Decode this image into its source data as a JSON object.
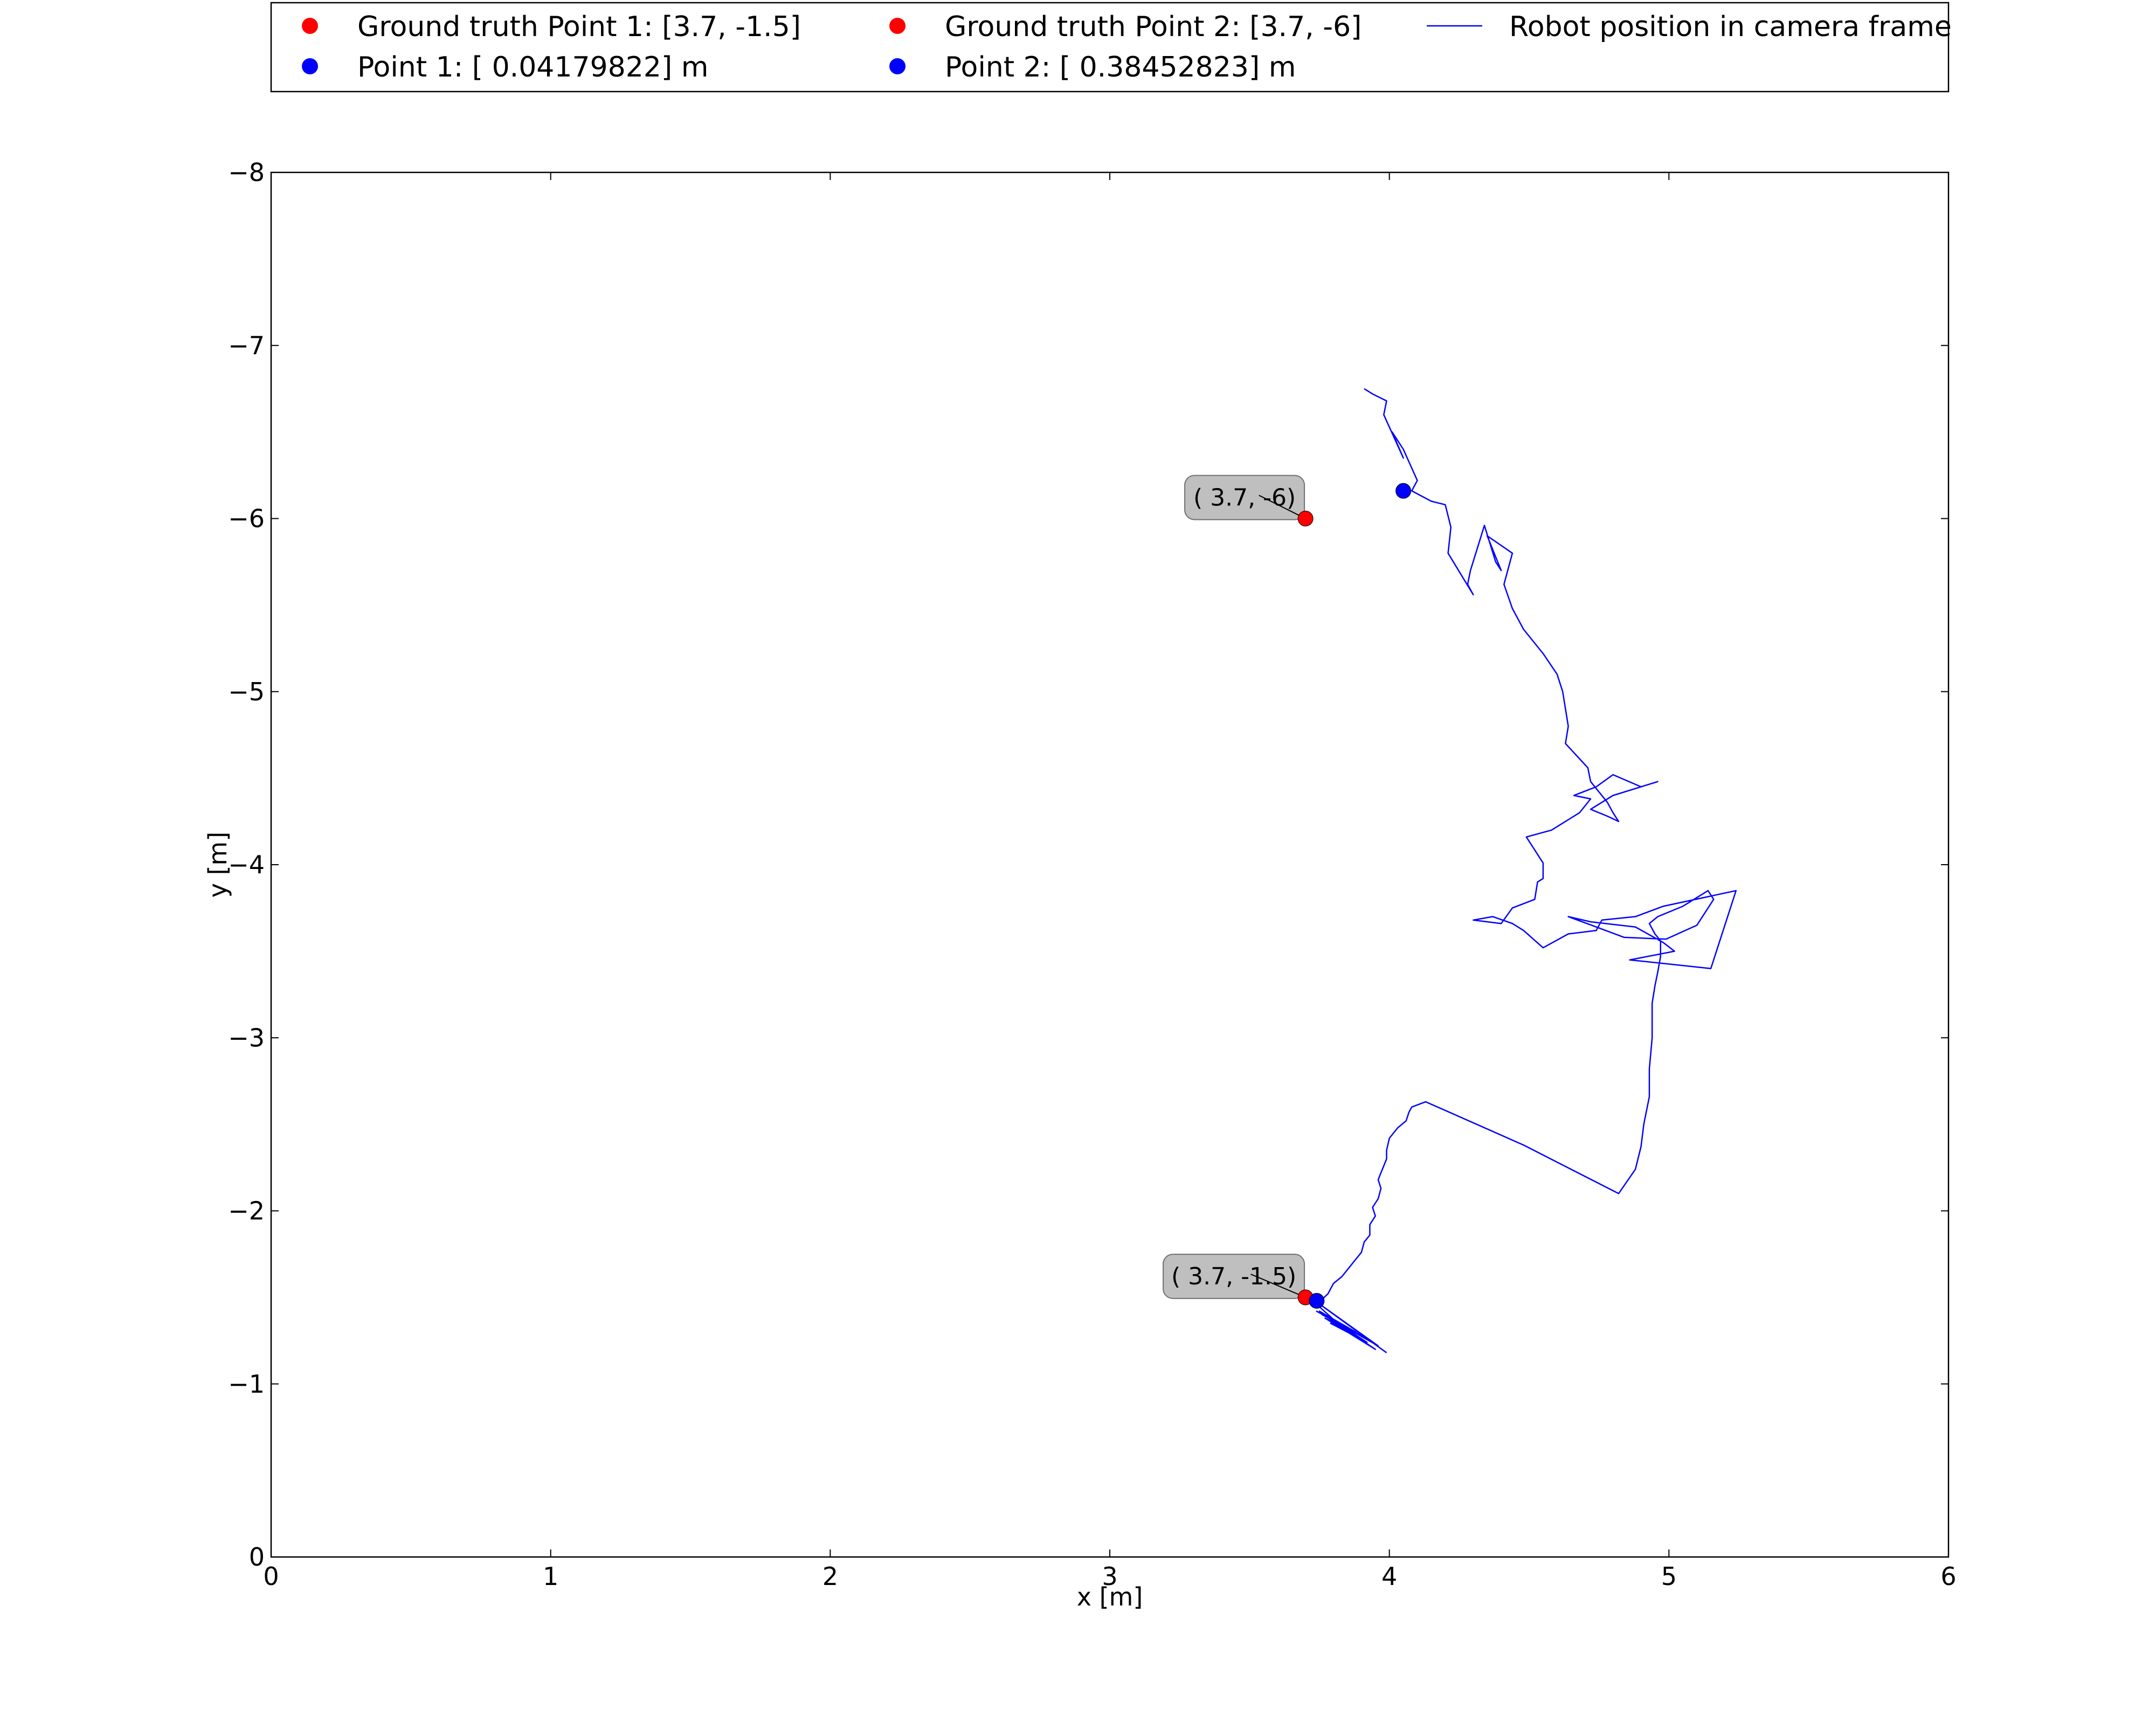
{
  "chart_data": {
    "type": "line",
    "xlabel": "x [m]",
    "ylabel": "y [m]",
    "xlim": [
      0,
      6
    ],
    "ylim": [
      0,
      -8
    ],
    "y_axis_inverted": true,
    "x_ticks": [
      "0",
      "1",
      "2",
      "3",
      "4",
      "5",
      "6"
    ],
    "y_ticks": [
      "0",
      "−1",
      "−2",
      "−3",
      "−4",
      "−5",
      "−6",
      "−7",
      "−8"
    ],
    "grid": false,
    "legend_placement": "top (above plot, 3 columns)",
    "legend": [
      {
        "label": "Ground truth Point 1: [3.7, -1.5]",
        "marker": "dot",
        "color": "#ff0000"
      },
      {
        "label": "Point 1: [ 0.04179822] m",
        "marker": "dot",
        "color": "#0000ff"
      },
      {
        "label": "Ground truth Point 2: [3.7, -6]",
        "marker": "dot",
        "color": "#ff0000"
      },
      {
        "label": "Point 2: [ 0.38452823] m",
        "marker": "dot",
        "color": "#0000ff"
      },
      {
        "label": "Robot position in camera frame",
        "marker": "line",
        "color": "#0000ff"
      }
    ],
    "points": [
      {
        "name": "ground-truth-point-1",
        "x": 3.7,
        "y": -1.5,
        "color": "#ff0000"
      },
      {
        "name": "ground-truth-point-2",
        "x": 3.7,
        "y": -6.0,
        "color": "#ff0000"
      },
      {
        "name": "estimated-point-1",
        "x": 3.74,
        "y": -1.48,
        "color": "#0000ff"
      },
      {
        "name": "estimated-point-2",
        "x": 4.05,
        "y": -6.16,
        "color": "#0000ff"
      }
    ],
    "annotations": [
      {
        "text": "( 3.7, -1.5)",
        "x": 3.7,
        "y": -1.5
      },
      {
        "text": "( 3.7, -6)",
        "x": 3.7,
        "y": -6.0
      }
    ],
    "series": [
      {
        "color": "#0000ff",
        "x": [
          3.99,
          3.76,
          3.96,
          3.74,
          3.93,
          3.76,
          3.9,
          3.77,
          3.95,
          3.8,
          3.88,
          3.75,
          3.92,
          3.79,
          3.85,
          3.74,
          3.78,
          3.8,
          3.83,
          3.85,
          3.88,
          3.9,
          3.91,
          3.93,
          3.93,
          3.95,
          3.94,
          3.96,
          3.97,
          3.96,
          3.97,
          3.98,
          3.99,
          3.99,
          4.0,
          4.03,
          4.06,
          4.07,
          4.08,
          4.13,
          4.48,
          4.82,
          4.88,
          4.9,
          4.91,
          4.93,
          4.93,
          4.94,
          4.94,
          4.95,
          4.96,
          4.97,
          4.97,
          4.95,
          4.93,
          4.96,
          5.05,
          5.14,
          5.16,
          5.1,
          4.99,
          4.84,
          4.74,
          4.64,
          4.72,
          4.88,
          4.98,
          5.02,
          4.86,
          5.15,
          5.24,
          4.98,
          4.88,
          4.76,
          4.74,
          4.64,
          4.55,
          4.48,
          4.44,
          4.37,
          4.3,
          4.4,
          4.44,
          4.52,
          4.53,
          4.55,
          4.55,
          4.49,
          4.58,
          4.64,
          4.68,
          4.72,
          4.66,
          4.74,
          4.8,
          4.9,
          4.96,
          4.8,
          4.72,
          4.78,
          4.82,
          4.8,
          4.78,
          4.72,
          4.71,
          4.63,
          4.64,
          4.62,
          4.6,
          4.55,
          4.48,
          4.44,
          4.41,
          4.44,
          4.35,
          4.4,
          4.38,
          4.34,
          4.29,
          4.28,
          4.3,
          4.21,
          4.22,
          4.2,
          4.15,
          4.08,
          4.1,
          4.05,
          4.01,
          4.05,
          3.98,
          3.99,
          3.94,
          3.92,
          3.91
        ],
        "y": [
          -1.18,
          -1.45,
          -1.22,
          -1.42,
          -1.25,
          -1.4,
          -1.28,
          -1.38,
          -1.2,
          -1.36,
          -1.3,
          -1.42,
          -1.24,
          -1.35,
          -1.3,
          -1.46,
          -1.52,
          -1.58,
          -1.62,
          -1.66,
          -1.72,
          -1.76,
          -1.82,
          -1.86,
          -1.92,
          -1.97,
          -2.02,
          -2.07,
          -2.13,
          -2.18,
          -2.22,
          -2.26,
          -2.3,
          -2.35,
          -2.42,
          -2.48,
          -2.52,
          -2.57,
          -2.6,
          -2.63,
          -2.38,
          -2.1,
          -2.24,
          -2.37,
          -2.5,
          -2.66,
          -2.82,
          -3.0,
          -3.2,
          -3.3,
          -3.38,
          -3.47,
          -3.56,
          -3.6,
          -3.66,
          -3.7,
          -3.76,
          -3.85,
          -3.8,
          -3.65,
          -3.57,
          -3.58,
          -3.64,
          -3.7,
          -3.67,
          -3.64,
          -3.55,
          -3.5,
          -3.45,
          -3.4,
          -3.85,
          -3.76,
          -3.7,
          -3.68,
          -3.62,
          -3.6,
          -3.52,
          -3.62,
          -3.66,
          -3.7,
          -3.68,
          -3.66,
          -3.75,
          -3.8,
          -3.9,
          -3.92,
          -4.01,
          -4.16,
          -4.2,
          -4.26,
          -4.3,
          -4.38,
          -4.4,
          -4.45,
          -4.52,
          -4.45,
          -4.48,
          -4.4,
          -4.32,
          -4.28,
          -4.25,
          -4.3,
          -4.36,
          -4.48,
          -4.56,
          -4.7,
          -4.8,
          -5.0,
          -5.1,
          -5.22,
          -5.36,
          -5.48,
          -5.62,
          -5.8,
          -5.9,
          -5.7,
          -5.75,
          -5.96,
          -5.7,
          -5.62,
          -5.56,
          -5.8,
          -5.95,
          -6.08,
          -6.1,
          -6.16,
          -6.22,
          -6.4,
          -6.5,
          -6.35,
          -6.6,
          -6.68,
          -6.72,
          -6.74,
          -6.75
        ]
      }
    ]
  }
}
